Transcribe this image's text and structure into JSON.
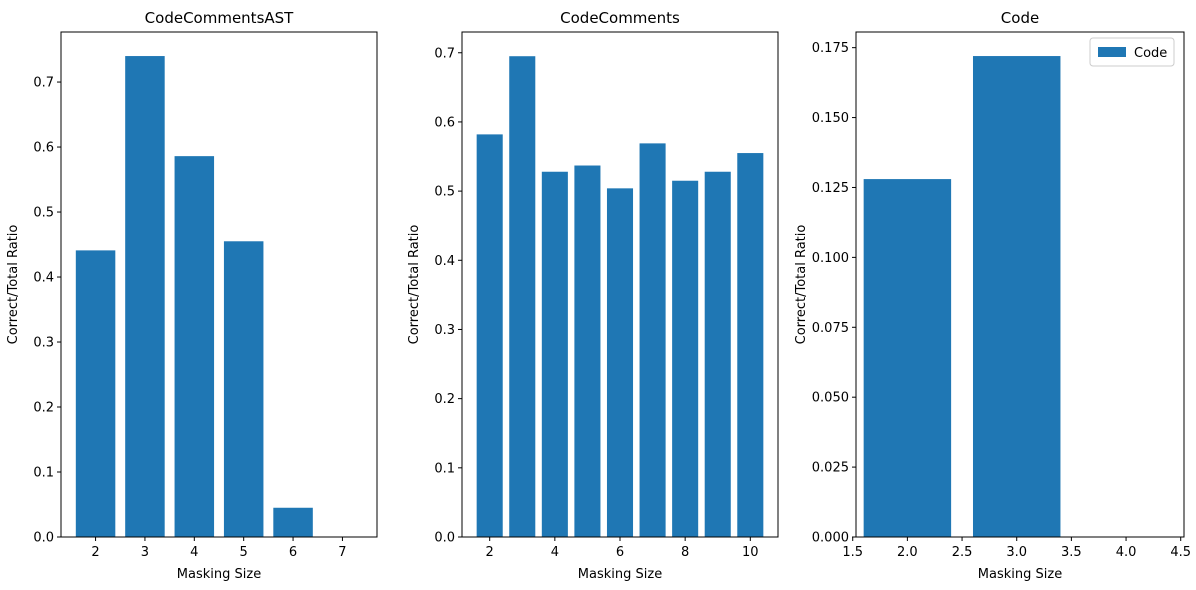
{
  "chart_data": [
    {
      "type": "bar",
      "title": "CodeCommentsAST",
      "xlabel": "Masking Size",
      "ylabel": "Correct/Total Ratio",
      "x": [
        2,
        3,
        4,
        5,
        6
      ],
      "values": [
        0.441,
        0.74,
        0.586,
        0.455,
        0.045
      ],
      "xlim": [
        1.3,
        7.7
      ],
      "ylim": [
        0,
        0.777
      ],
      "xticks": [
        2,
        3,
        4,
        5,
        6,
        7
      ],
      "yticks": [
        0.0,
        0.1,
        0.2,
        0.3,
        0.4,
        0.5,
        0.6,
        0.7
      ],
      "xtick_labels": [
        "2",
        "3",
        "4",
        "5",
        "6",
        "7"
      ],
      "ytick_labels": [
        "0.0",
        "0.1",
        "0.2",
        "0.3",
        "0.4",
        "0.5",
        "0.6",
        "0.7"
      ],
      "bar_width": 0.8,
      "color": "#1f77b4",
      "grid": false
    },
    {
      "type": "bar",
      "title": "CodeComments",
      "xlabel": "Masking Size",
      "ylabel": "Correct/Total Ratio",
      "x": [
        2,
        3,
        4,
        5,
        6,
        7,
        8,
        9,
        10
      ],
      "values": [
        0.582,
        0.695,
        0.528,
        0.537,
        0.504,
        0.569,
        0.515,
        0.528,
        0.555
      ],
      "xlim": [
        1.15,
        10.85
      ],
      "ylim": [
        0,
        0.73
      ],
      "xticks": [
        2,
        4,
        6,
        8,
        10
      ],
      "yticks": [
        0.0,
        0.1,
        0.2,
        0.3,
        0.4,
        0.5,
        0.6,
        0.7
      ],
      "xtick_labels": [
        "2",
        "4",
        "6",
        "8",
        "10"
      ],
      "ytick_labels": [
        "0.0",
        "0.1",
        "0.2",
        "0.3",
        "0.4",
        "0.5",
        "0.6",
        "0.7"
      ],
      "bar_width": 0.8,
      "color": "#1f77b4",
      "grid": false
    },
    {
      "type": "bar",
      "title": "Code",
      "xlabel": "Masking Size",
      "ylabel": "Correct/Total Ratio",
      "x": [
        2,
        3
      ],
      "values": [
        0.128,
        0.172
      ],
      "xlim": [
        1.53,
        4.53
      ],
      "ylim": [
        0,
        0.1806
      ],
      "xticks": [
        1.5,
        2.0,
        2.5,
        3.0,
        3.5,
        4.0,
        4.5
      ],
      "yticks": [
        0.0,
        0.025,
        0.05,
        0.075,
        0.1,
        0.125,
        0.15,
        0.175
      ],
      "xtick_labels": [
        "1.5",
        "2.0",
        "2.5",
        "3.0",
        "3.5",
        "4.0",
        "4.5"
      ],
      "ytick_labels": [
        "0.000",
        "0.025",
        "0.050",
        "0.075",
        "0.100",
        "0.125",
        "0.150",
        "0.175"
      ],
      "bar_width": 0.8,
      "color": "#1f77b4",
      "grid": false,
      "legend": {
        "position": "top-right",
        "entries": [
          "Code"
        ]
      }
    }
  ]
}
